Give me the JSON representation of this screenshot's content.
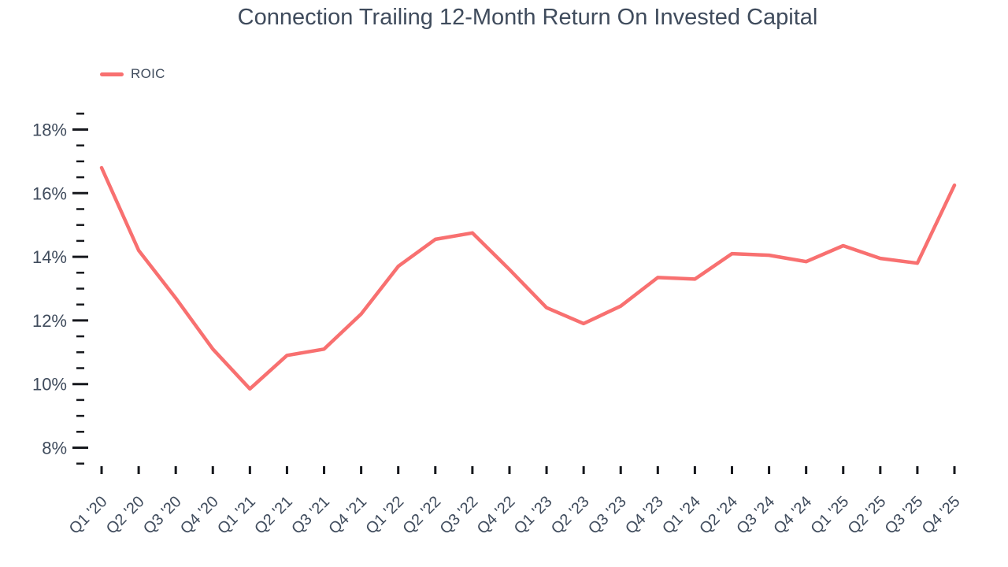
{
  "chart": {
    "accent_color": "#f87070",
    "text_color": "#3f4b5c",
    "tick_color": "#16181d",
    "background_color": "#ffffff"
  },
  "chart_data": {
    "type": "line",
    "title": "Connection Trailing 12-Month Return On Invested Capital",
    "xlabel": "",
    "ylabel": "",
    "legend_position": "top-left",
    "grid": false,
    "categories": [
      "Q1 '20",
      "Q2 '20",
      "Q3 '20",
      "Q4 '20",
      "Q1 '21",
      "Q2 '21",
      "Q3 '21",
      "Q4 '21",
      "Q1 '22",
      "Q2 '22",
      "Q3 '22",
      "Q4 '22",
      "Q1 '23",
      "Q2 '23",
      "Q3 '23",
      "Q4 '23",
      "Q1 '24",
      "Q2 '24",
      "Q3 '24",
      "Q4 '24",
      "Q1 '25",
      "Q2 '25",
      "Q3 '25",
      "Q4 '25"
    ],
    "series": [
      {
        "name": "ROIC",
        "color": "#f87070",
        "values": [
          16.8,
          14.2,
          12.7,
          11.1,
          9.85,
          10.9,
          11.1,
          12.2,
          13.7,
          14.55,
          14.75,
          13.6,
          12.4,
          11.9,
          12.45,
          13.35,
          13.3,
          14.1,
          14.05,
          13.85,
          14.35,
          13.95,
          13.8,
          16.25
        ]
      }
    ],
    "y_axis": {
      "unit": "%",
      "range_min": 7.5,
      "range_max": 18.5,
      "minor_tick_step": 0.5,
      "labeled_ticks": [
        8,
        10,
        12,
        14,
        16,
        18
      ],
      "tick_labels": [
        "8%",
        "10%",
        "12%",
        "14%",
        "16%",
        "18%"
      ]
    }
  }
}
